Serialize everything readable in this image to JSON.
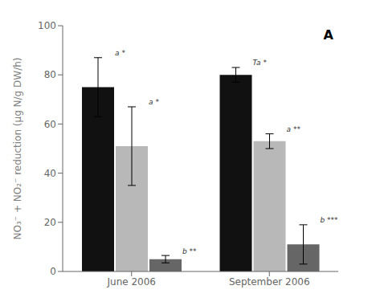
{
  "chart_data": {
    "type": "bar",
    "categories": [
      "June 2006",
      "September 2006"
    ],
    "ylabel": "NO₃⁻ + NO₂⁻ reduction (μg N/g DW/h)",
    "ylim": [
      0,
      100
    ],
    "yticks": [
      0,
      20,
      40,
      60,
      80,
      100
    ],
    "grid": false,
    "annotations": [
      {
        "text": "A"
      }
    ],
    "series": [
      {
        "color": "#111111",
        "values": [
          75,
          80
        ],
        "errors": [
          12,
          3
        ],
        "annotations": [
          "a *",
          "Ta *"
        ]
      },
      {
        "color": "#b8b8b8",
        "values": [
          51,
          53
        ],
        "errors": [
          16,
          3
        ],
        "annotations": [
          "a *",
          "a **"
        ]
      },
      {
        "color": "#666666",
        "values": [
          5,
          11
        ],
        "errors": [
          1.5,
          8
        ],
        "annotations": [
          "b **",
          "b ***"
        ]
      }
    ]
  }
}
